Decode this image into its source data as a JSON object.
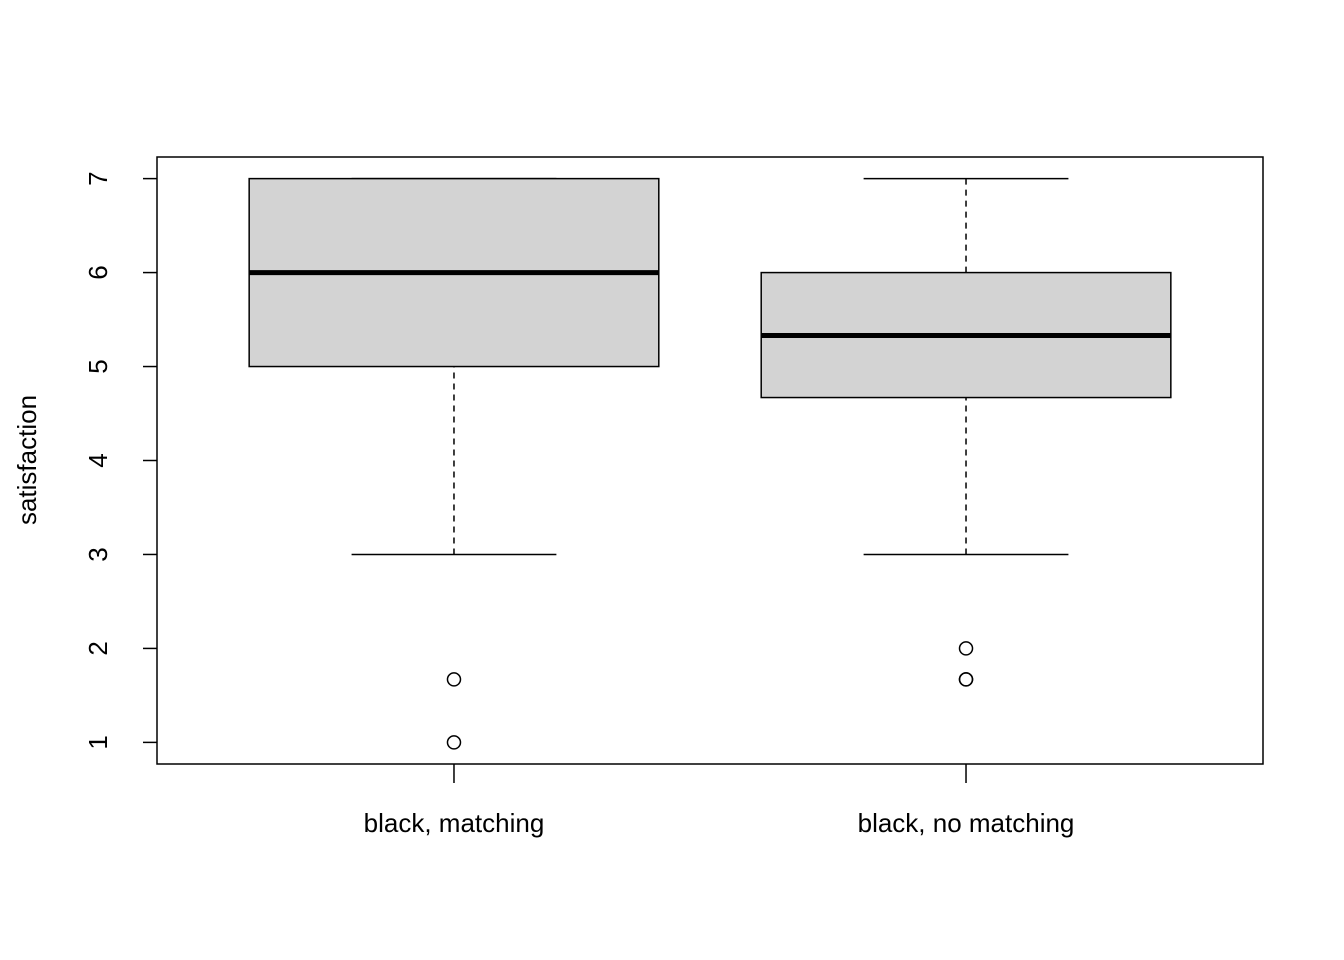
{
  "chart_data": {
    "type": "box",
    "ylabel": "satisfaction",
    "ylim": [
      0.77,
      7.23
    ],
    "y_ticks": [
      "1",
      "2",
      "3",
      "4",
      "5",
      "6",
      "7"
    ],
    "fill_color": "#d3d3d3",
    "categories": [
      "black, matching",
      "black, no matching"
    ],
    "boxes": [
      {
        "name": "black, matching",
        "whisker_low": 3,
        "q1": 5,
        "median": 6,
        "q3": 7,
        "whisker_high": 7,
        "outliers": [
          1.67,
          1
        ]
      },
      {
        "name": "black, no matching",
        "whisker_low": 3,
        "q1": 4.67,
        "median": 5.33,
        "q3": 6,
        "whisker_high": 7,
        "outliers": [
          2,
          1.67,
          1.67
        ]
      }
    ]
  }
}
